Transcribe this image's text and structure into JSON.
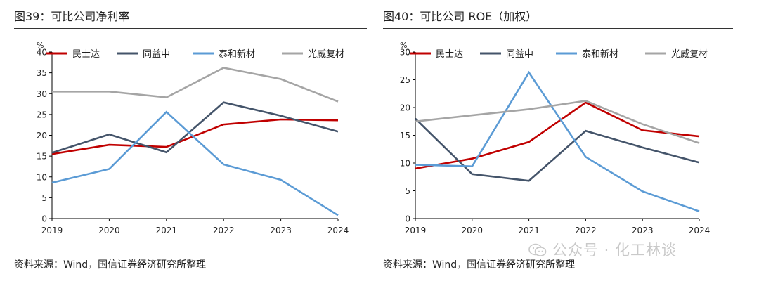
{
  "watermark": {
    "text": "公众号 · 化工林谈"
  },
  "charts": [
    {
      "figure_title": "图39：可比公司净利率",
      "source": "资料来源：Wind，国信证券经济研究所整理",
      "chart_data": {
        "type": "line",
        "ylabel": "%",
        "xlabel": "",
        "x": [
          "2019",
          "2020",
          "2021",
          "2022",
          "2023",
          "2024"
        ],
        "ylim": [
          0,
          40
        ],
        "yticks": [
          0,
          5,
          10,
          15,
          20,
          25,
          30,
          35,
          40
        ],
        "grid": false,
        "legend": "top",
        "series": [
          {
            "name": "民士达",
            "color": "#c00000",
            "values": [
              15.5,
              17.7,
              17.2,
              22.6,
              23.8,
              23.6
            ]
          },
          {
            "name": "同益中",
            "color": "#44546a",
            "values": [
              15.8,
              20.2,
              15.9,
              27.9,
              24.7,
              20.9
            ]
          },
          {
            "name": "泰和新材",
            "color": "#5b9bd5",
            "values": [
              8.6,
              11.9,
              25.6,
              13.0,
              9.3,
              0.8
            ]
          },
          {
            "name": "光威复材",
            "color": "#a5a5a5",
            "values": [
              30.5,
              30.5,
              29.1,
              36.2,
              33.5,
              28.1
            ]
          }
        ]
      }
    },
    {
      "figure_title": "图40：可比公司 ROE（加权）",
      "source": "资料来源：Wind，国信证券经济研究所整理",
      "chart_data": {
        "type": "line",
        "ylabel": "%",
        "xlabel": "",
        "x": [
          "2019",
          "2020",
          "2021",
          "2022",
          "2023",
          "2024"
        ],
        "ylim": [
          0,
          30
        ],
        "yticks": [
          0,
          5,
          10,
          15,
          20,
          25,
          30
        ],
        "grid": false,
        "legend": "top",
        "series": [
          {
            "name": "民士达",
            "color": "#c00000",
            "values": [
              9.0,
              10.8,
              13.8,
              20.9,
              15.9,
              14.8
            ]
          },
          {
            "name": "同益中",
            "color": "#44546a",
            "values": [
              18.0,
              8.0,
              6.8,
              15.8,
              12.8,
              10.1
            ]
          },
          {
            "name": "泰和新材",
            "color": "#5b9bd5",
            "values": [
              9.7,
              9.4,
              26.3,
              11.1,
              4.9,
              1.3
            ]
          },
          {
            "name": "光威复材",
            "color": "#a5a5a5",
            "values": [
              17.5,
              18.6,
              19.7,
              21.2,
              17.0,
              13.6
            ]
          }
        ]
      }
    }
  ]
}
